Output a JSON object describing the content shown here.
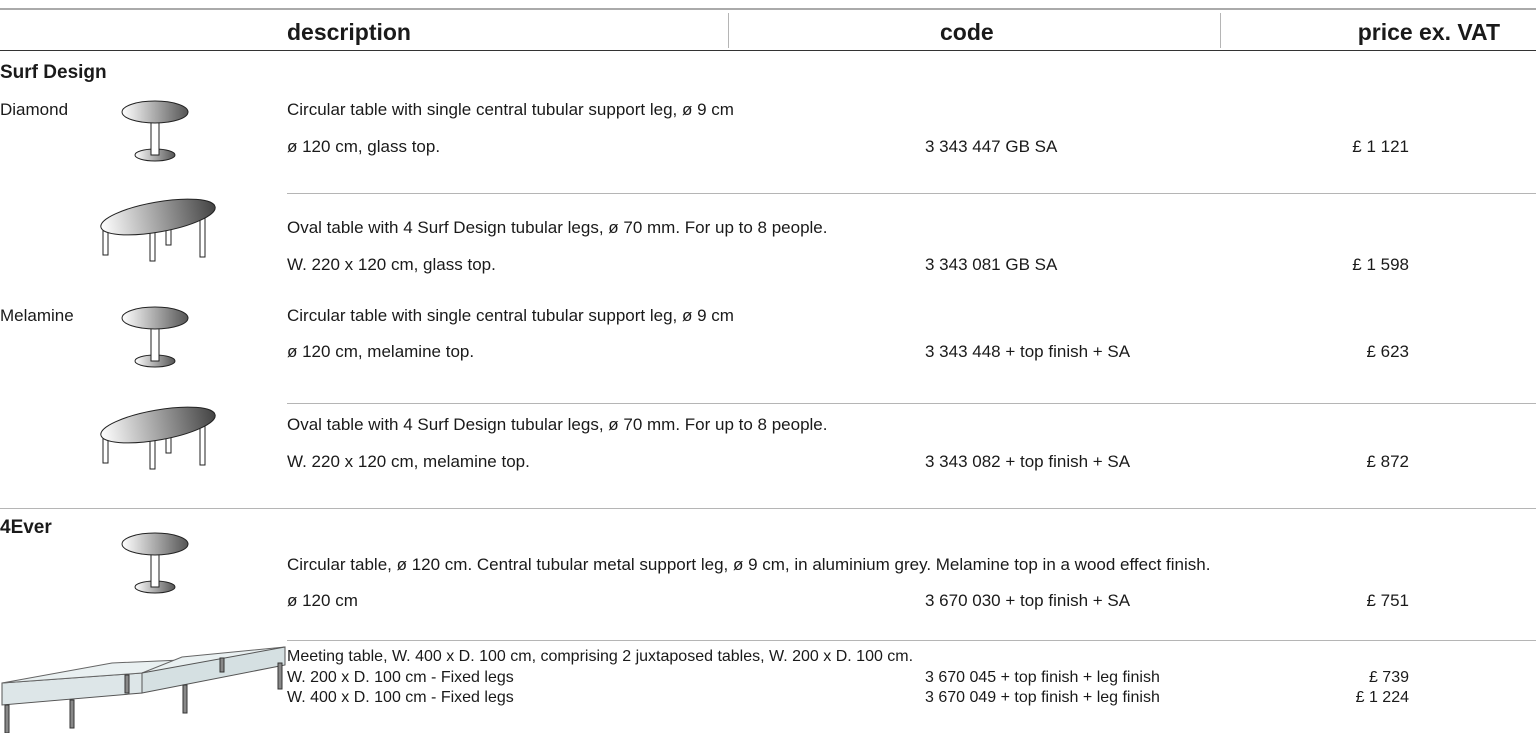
{
  "header": {
    "description": "description",
    "code": "code",
    "price": "price ex. VAT"
  },
  "sections": [
    {
      "title": "Surf Design",
      "items": [
        {
          "label": "Diamond",
          "description": "Circular table with single central tubular support leg, ø 9 cm",
          "rows": [
            {
              "size": "ø 120 cm, glass top.",
              "code": "3 343 447 GB SA",
              "price": "£ 1 121"
            }
          ]
        },
        {
          "description": "Oval table with 4 Surf Design tubular legs, ø 70 mm. For up to 8 people.",
          "rows": [
            {
              "size": "W. 220 x 120 cm, glass top.",
              "code": "3 343 081 GB SA",
              "price": "£ 1 598"
            }
          ]
        },
        {
          "label": "Melamine",
          "description": "Circular table with single central tubular support leg, ø 9 cm",
          "rows": [
            {
              "size": "ø 120 cm, melamine top.",
              "code": "3 343 448 + top finish + SA",
              "price": "£ 623"
            }
          ]
        },
        {
          "description": "Oval table with 4 Surf Design tubular legs, ø 70 mm. For up to 8 people.",
          "rows": [
            {
              "size": "W. 220 x 120 cm, melamine top.",
              "code": "3 343 082 + top finish + SA",
              "price": "£ 872"
            }
          ]
        }
      ]
    },
    {
      "title": "4Ever",
      "items": [
        {
          "description": "Circular table, ø 120 cm. Central tubular metal support leg, ø 9 cm, in aluminium grey. Melamine top in a wood effect finish.",
          "rows": [
            {
              "size": "ø 120 cm",
              "code": "3 670 030 + top finish + SA",
              "price": "£ 751"
            }
          ]
        },
        {
          "description": "Meeting table, W. 400 x D. 100 cm, comprising 2 juxtaposed tables, W. 200 x D. 100 cm.",
          "rows": [
            {
              "size": "W. 200 x D. 100 cm - Fixed legs",
              "code": "3 670 045 + top finish + leg finish",
              "price": "£ 739"
            },
            {
              "size": "W. 400 x D. 100 cm - Fixed legs",
              "code": "3 670 049 + top finish + leg finish",
              "price": "£ 1 224"
            }
          ]
        }
      ]
    }
  ]
}
